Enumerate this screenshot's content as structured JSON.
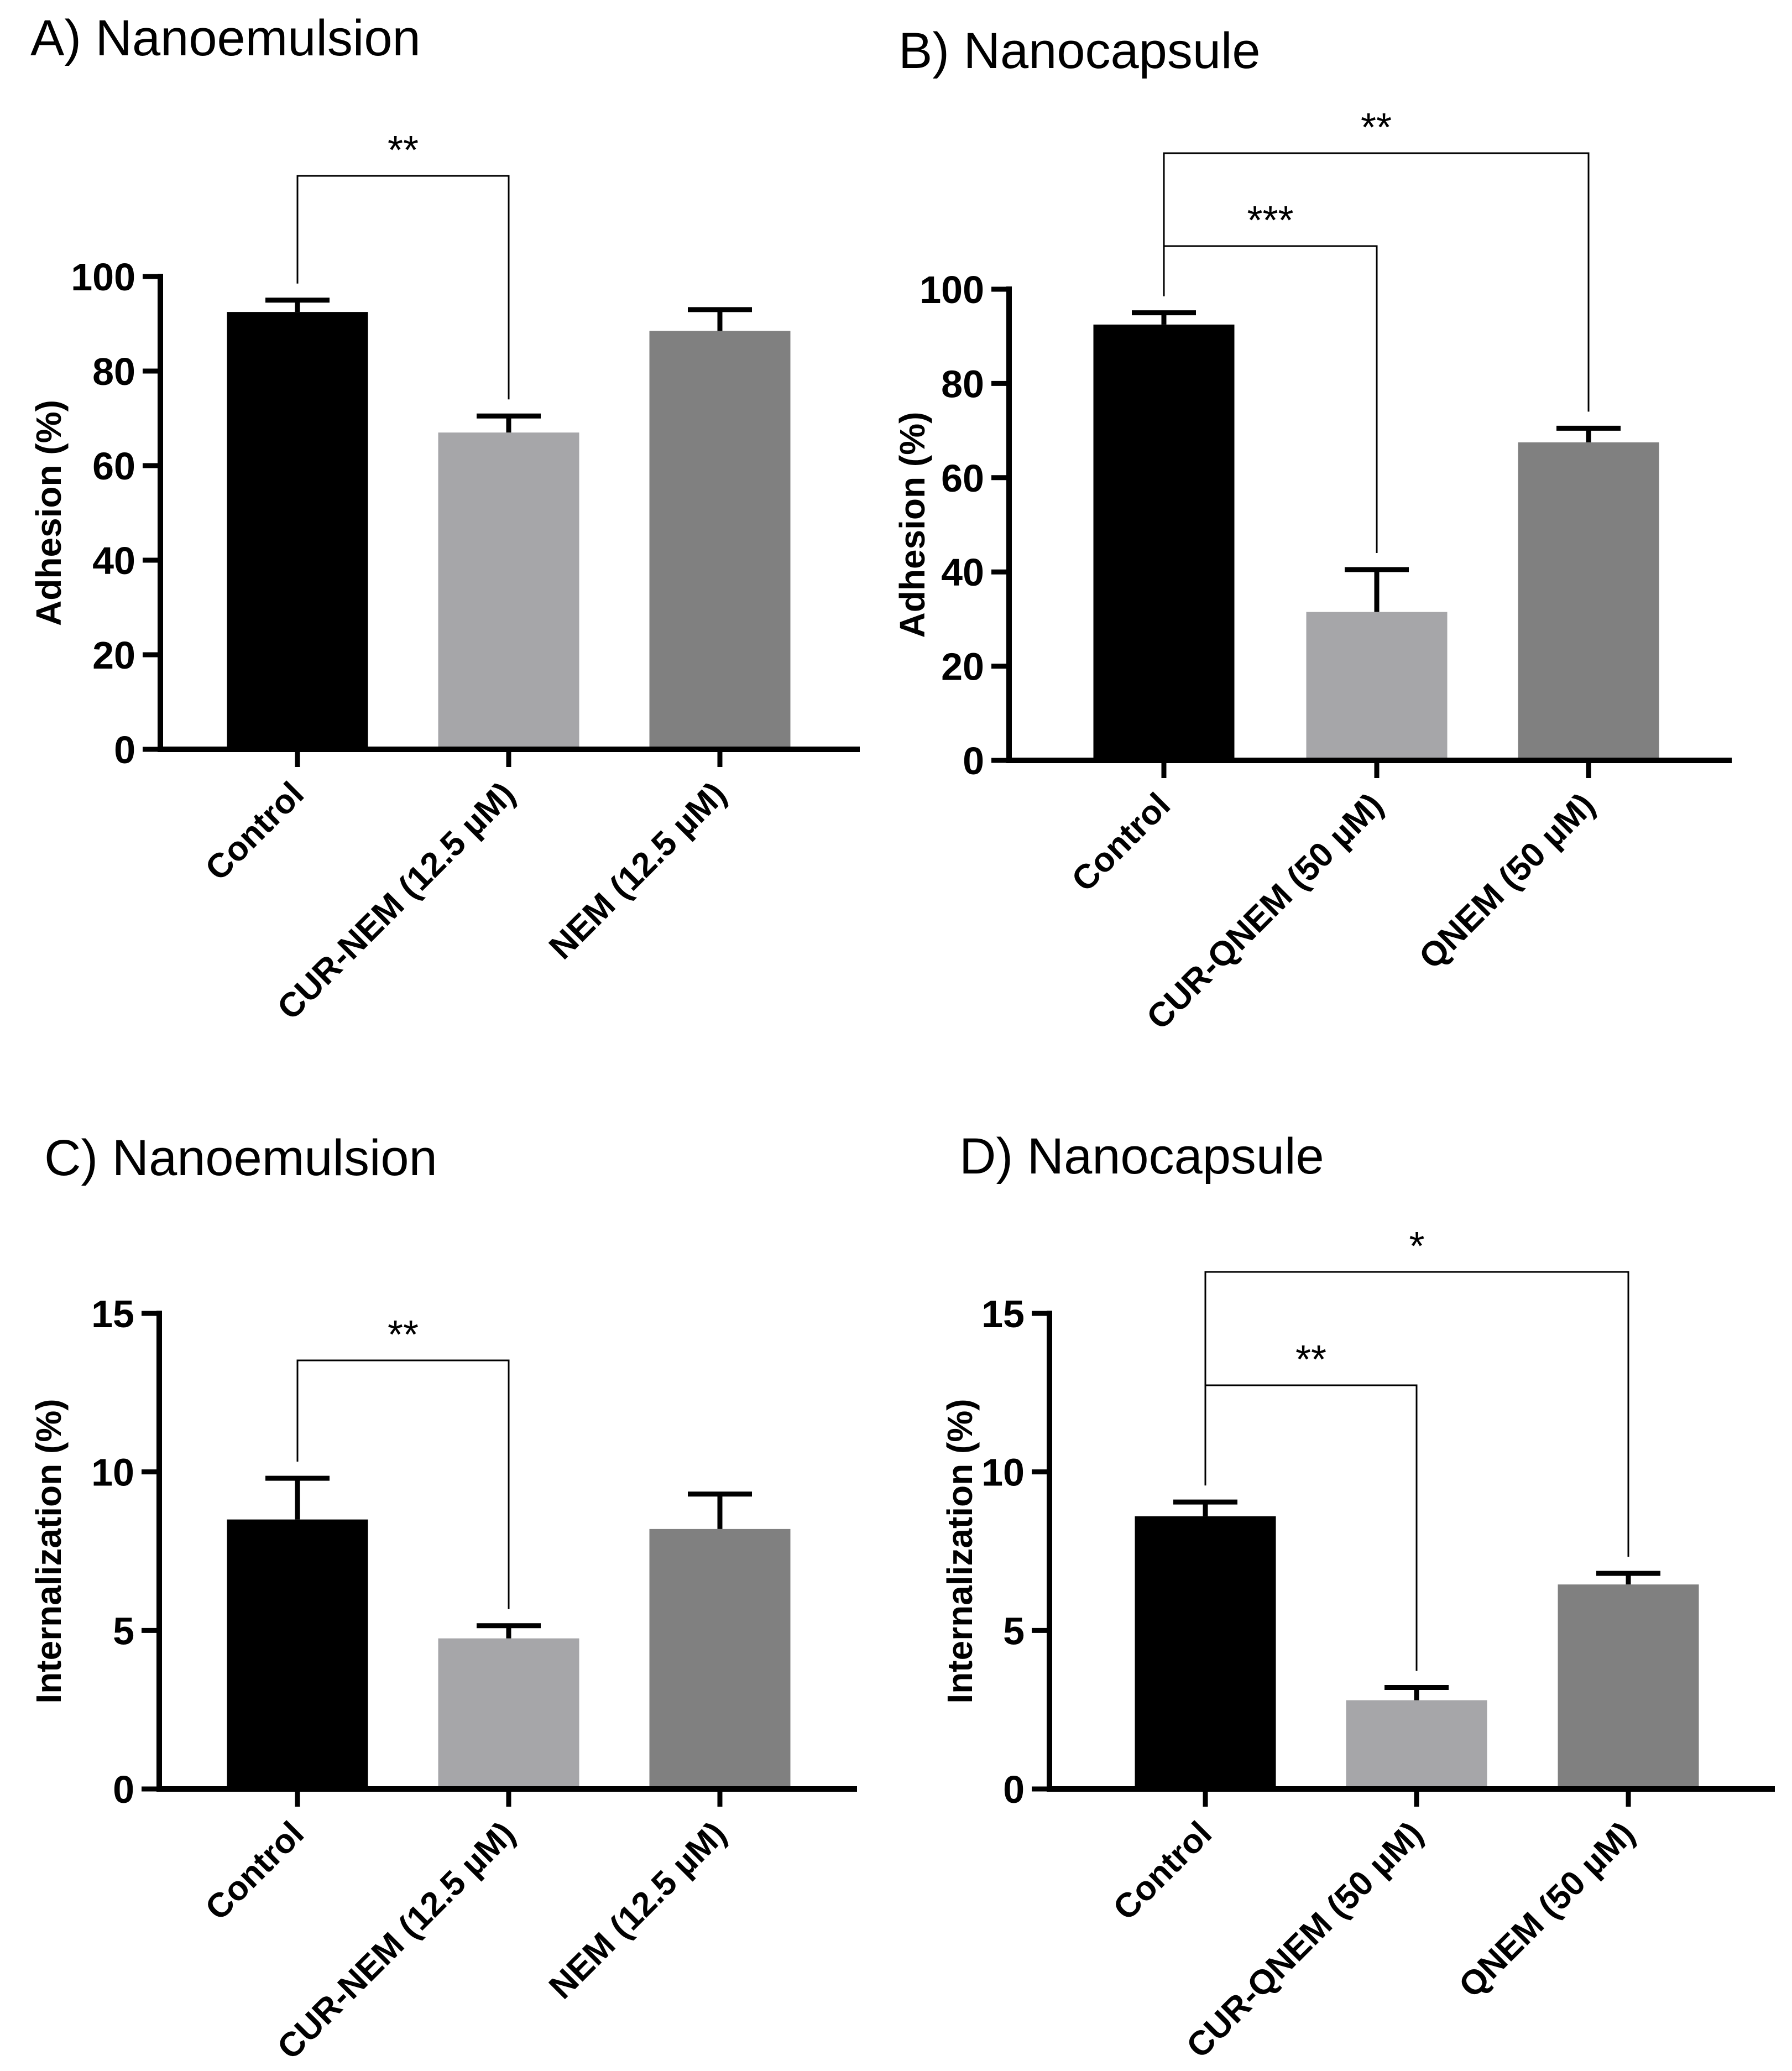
{
  "chart_data": [
    {
      "type": "bar",
      "title": "A) Nanoemulsion",
      "ylabel": "Adhesion (%)",
      "xlabel": "",
      "ylim": [
        0,
        100
      ],
      "yticks": [
        "0",
        "20",
        "40",
        "60",
        "80",
        "100"
      ],
      "categories": [
        "Control",
        "CUR-NEM (12.5 µM)",
        "NEM (12.5 µM)"
      ],
      "values": [
        92.5,
        67,
        88.5
      ],
      "errors": [
        2.5,
        3.5,
        4.5
      ],
      "colors": [
        "#000000",
        "#a6a6a9",
        "#808080"
      ],
      "significance": [
        {
          "from": 0,
          "to": 1,
          "label": "**"
        }
      ]
    },
    {
      "type": "bar",
      "title": "B) Nanocapsule",
      "ylabel": "Adhesion (%)",
      "xlabel": "",
      "ylim": [
        0,
        100
      ],
      "yticks": [
        "0",
        "20",
        "40",
        "60",
        "80",
        "100"
      ],
      "categories": [
        "Control",
        "CUR-QNEM (50 µM)",
        "QNEM (50 µM)"
      ],
      "values": [
        92.5,
        31.5,
        67.5
      ],
      "errors": [
        2.5,
        9,
        3
      ],
      "colors": [
        "#000000",
        "#a6a6a9",
        "#808080"
      ],
      "significance": [
        {
          "from": 0,
          "to": 1,
          "label": "***"
        },
        {
          "from": 0,
          "to": 2,
          "label": "**"
        }
      ]
    },
    {
      "type": "bar",
      "title": "C) Nanoemulsion",
      "ylabel": "Internalization (%)",
      "xlabel": "",
      "ylim": [
        0,
        15
      ],
      "yticks": [
        "0",
        "5",
        "10",
        "15"
      ],
      "categories": [
        "Control",
        "CUR-NEM (12.5 µM)",
        "NEM (12.5 µM)"
      ],
      "values": [
        8.5,
        4.75,
        8.2
      ],
      "errors": [
        1.3,
        0.4,
        1.1
      ],
      "colors": [
        "#000000",
        "#a6a6a9",
        "#808080"
      ],
      "significance": [
        {
          "from": 0,
          "to": 1,
          "label": "**"
        }
      ]
    },
    {
      "type": "bar",
      "title": "D) Nanocapsule",
      "ylabel": "Internalization (%)",
      "xlabel": "",
      "ylim": [
        0,
        15
      ],
      "yticks": [
        "0",
        "5",
        "10",
        "15"
      ],
      "categories": [
        "Control",
        "CUR-QNEM (50 µM)",
        "QNEM (50 µM)"
      ],
      "values": [
        8.6,
        2.8,
        6.45
      ],
      "errors": [
        0.45,
        0.4,
        0.35
      ],
      "colors": [
        "#000000",
        "#a6a6a9",
        "#808080"
      ],
      "significance": [
        {
          "from": 0,
          "to": 1,
          "label": "**"
        },
        {
          "from": 0,
          "to": 2,
          "label": "*"
        }
      ]
    }
  ]
}
